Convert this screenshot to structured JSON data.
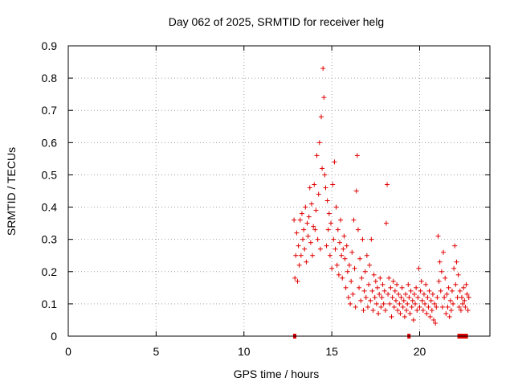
{
  "chart_data": {
    "type": "scatter",
    "title": "Day 062 of 2025, SRMTID for receiver helg",
    "xlabel": "GPS time / hours",
    "ylabel": "SRMTID / TECUs",
    "xlim": [
      0,
      24
    ],
    "ylim": [
      0,
      0.9
    ],
    "xticks": [
      "0",
      "5",
      "10",
      "15",
      "20"
    ],
    "yticks": [
      "0",
      "0.1",
      "0.2",
      "0.3",
      "0.4",
      "0.5",
      "0.6",
      "0.7",
      "0.8",
      "0.9"
    ],
    "grid": true,
    "marker": "+",
    "color": "#e00000",
    "series": [
      {
        "name": "SRMTID",
        "points": [
          [
            12.85,
            0.36
          ],
          [
            12.9,
            0.18
          ],
          [
            12.95,
            0.25
          ],
          [
            13.0,
            0.32
          ],
          [
            13.05,
            0.17
          ],
          [
            13.1,
            0.28
          ],
          [
            13.15,
            0.22
          ],
          [
            13.2,
            0.36
          ],
          [
            13.25,
            0.25
          ],
          [
            13.3,
            0.38
          ],
          [
            13.35,
            0.3
          ],
          [
            13.4,
            0.33
          ],
          [
            13.45,
            0.27
          ],
          [
            13.5,
            0.4
          ],
          [
            13.55,
            0.23
          ],
          [
            13.6,
            0.35
          ],
          [
            13.65,
            0.31
          ],
          [
            13.7,
            0.37
          ],
          [
            13.75,
            0.46
          ],
          [
            13.8,
            0.29
          ],
          [
            13.85,
            0.41
          ],
          [
            13.9,
            0.25
          ],
          [
            13.95,
            0.34
          ],
          [
            14.0,
            0.47
          ],
          [
            14.05,
            0.33
          ],
          [
            14.1,
            0.39
          ],
          [
            14.15,
            0.56
          ],
          [
            14.2,
            0.3
          ],
          [
            14.25,
            0.44
          ],
          [
            14.3,
            0.6
          ],
          [
            14.35,
            0.27
          ],
          [
            14.4,
            0.68
          ],
          [
            14.45,
            0.52
          ],
          [
            14.5,
            0.83
          ],
          [
            14.55,
            0.74
          ],
          [
            14.6,
            0.5
          ],
          [
            14.65,
            0.46
          ],
          [
            14.7,
            0.28
          ],
          [
            14.75,
            0.42
          ],
          [
            14.8,
            0.33
          ],
          [
            14.85,
            0.38
          ],
          [
            14.9,
            0.25
          ],
          [
            14.95,
            0.35
          ],
          [
            15.0,
            0.21
          ],
          [
            15.05,
            0.47
          ],
          [
            15.1,
            0.3
          ],
          [
            15.15,
            0.54
          ],
          [
            15.2,
            0.27
          ],
          [
            15.25,
            0.4
          ],
          [
            15.3,
            0.22
          ],
          [
            15.35,
            0.33
          ],
          [
            15.4,
            0.19
          ],
          [
            15.45,
            0.29
          ],
          [
            15.5,
            0.36
          ],
          [
            15.55,
            0.25
          ],
          [
            15.6,
            0.18
          ],
          [
            15.65,
            0.27
          ],
          [
            15.7,
            0.31
          ],
          [
            15.75,
            0.24
          ],
          [
            15.8,
            0.15
          ],
          [
            15.85,
            0.28
          ],
          [
            15.9,
            0.2
          ],
          [
            15.95,
            0.12
          ],
          [
            16.0,
            0.22
          ],
          [
            16.05,
            0.1
          ],
          [
            16.1,
            0.17
          ],
          [
            16.15,
            0.26
          ],
          [
            16.2,
            0.13
          ],
          [
            16.25,
            0.36
          ],
          [
            16.3,
            0.21
          ],
          [
            16.35,
            0.09
          ],
          [
            16.4,
            0.45
          ],
          [
            16.45,
            0.56
          ],
          [
            16.5,
            0.33
          ],
          [
            16.55,
            0.15
          ],
          [
            16.6,
            0.24
          ],
          [
            16.65,
            0.11
          ],
          [
            16.7,
            0.18
          ],
          [
            16.75,
            0.3
          ],
          [
            16.8,
            0.08
          ],
          [
            16.85,
            0.14
          ],
          [
            16.9,
            0.2
          ],
          [
            16.95,
            0.12
          ],
          [
            17.0,
            0.25
          ],
          [
            17.05,
            0.09
          ],
          [
            17.1,
            0.16
          ],
          [
            17.15,
            0.22
          ],
          [
            17.2,
            0.11
          ],
          [
            17.25,
            0.3
          ],
          [
            17.3,
            0.14
          ],
          [
            17.35,
            0.08
          ],
          [
            17.4,
            0.19
          ],
          [
            17.45,
            0.12
          ],
          [
            17.5,
            0.17
          ],
          [
            17.55,
            0.1
          ],
          [
            17.6,
            0.15
          ],
          [
            17.65,
            0.07
          ],
          [
            17.7,
            0.13
          ],
          [
            17.75,
            0.18
          ],
          [
            17.8,
            0.09
          ],
          [
            17.85,
            0.12
          ],
          [
            17.9,
            0.16
          ],
          [
            17.95,
            0.1
          ],
          [
            18.0,
            0.14
          ],
          [
            18.05,
            0.08
          ],
          [
            18.1,
            0.35
          ],
          [
            18.15,
            0.47
          ],
          [
            18.2,
            0.13
          ],
          [
            18.25,
            0.18
          ],
          [
            18.3,
            0.1
          ],
          [
            18.35,
            0.15
          ],
          [
            18.4,
            0.06
          ],
          [
            18.45,
            0.12
          ],
          [
            18.5,
            0.17
          ],
          [
            18.55,
            0.09
          ],
          [
            18.6,
            0.14
          ],
          [
            18.65,
            0.11
          ],
          [
            18.7,
            0.16
          ],
          [
            18.75,
            0.08
          ],
          [
            18.8,
            0.13
          ],
          [
            18.85,
            0.1
          ],
          [
            18.9,
            0.07
          ],
          [
            18.95,
            0.12
          ],
          [
            19.0,
            0.15
          ],
          [
            19.05,
            0.09
          ],
          [
            19.1,
            0.11
          ],
          [
            19.15,
            0.06
          ],
          [
            19.2,
            0.13
          ],
          [
            19.25,
            0.08
          ],
          [
            19.3,
            0.1
          ],
          [
            19.35,
            0.16
          ],
          [
            19.4,
            0.12
          ],
          [
            19.45,
            0.07
          ],
          [
            19.5,
            0.14
          ],
          [
            19.55,
            0.09
          ],
          [
            19.6,
            0.11
          ],
          [
            19.65,
            0.05
          ],
          [
            19.7,
            0.13
          ],
          [
            19.75,
            0.1
          ],
          [
            19.8,
            0.15
          ],
          [
            19.85,
            0.08
          ],
          [
            19.9,
            0.12
          ],
          [
            19.95,
            0.21
          ],
          [
            20.0,
            0.09
          ],
          [
            20.05,
            0.14
          ],
          [
            20.1,
            0.17
          ],
          [
            20.15,
            0.11
          ],
          [
            20.2,
            0.08
          ],
          [
            20.25,
            0.13
          ],
          [
            20.3,
            0.1
          ],
          [
            20.35,
            0.16
          ],
          [
            20.4,
            0.07
          ],
          [
            20.45,
            0.12
          ],
          [
            20.5,
            0.09
          ],
          [
            20.55,
            0.14
          ],
          [
            20.6,
            0.06
          ],
          [
            20.65,
            0.11
          ],
          [
            20.7,
            0.08
          ],
          [
            20.75,
            0.13
          ],
          [
            20.8,
            0.05
          ],
          [
            20.85,
            0.1
          ],
          [
            20.9,
            0.04
          ],
          [
            20.95,
            0.09
          ],
          [
            21.0,
            0.12
          ],
          [
            21.05,
            0.31
          ],
          [
            21.1,
            0.17
          ],
          [
            21.15,
            0.23
          ],
          [
            21.2,
            0.14
          ],
          [
            21.25,
            0.2
          ],
          [
            21.3,
            0.09
          ],
          [
            21.35,
            0.26
          ],
          [
            21.4,
            0.12
          ],
          [
            21.45,
            0.18
          ],
          [
            21.5,
            0.07
          ],
          [
            21.55,
            0.13
          ],
          [
            21.6,
            0.09
          ],
          [
            21.65,
            0.15
          ],
          [
            21.7,
            0.06
          ],
          [
            21.75,
            0.11
          ],
          [
            21.8,
            0.08
          ],
          [
            21.85,
            0.14
          ],
          [
            21.9,
            0.1
          ],
          [
            21.95,
            0.21
          ],
          [
            22.0,
            0.28
          ],
          [
            22.05,
            0.16
          ],
          [
            22.1,
            0.23
          ],
          [
            22.15,
            0.12
          ],
          [
            22.2,
            0.19
          ],
          [
            22.25,
            0.09
          ],
          [
            22.3,
            0.14
          ],
          [
            22.35,
            0.08
          ],
          [
            22.4,
            0.12
          ],
          [
            22.45,
            0.1
          ],
          [
            22.5,
            0.15
          ],
          [
            22.55,
            0.11
          ],
          [
            22.6,
            0.09
          ],
          [
            22.65,
            0.16
          ],
          [
            22.7,
            0.13
          ],
          [
            22.75,
            0.08
          ],
          [
            22.8,
            0.12
          ]
        ]
      }
    ],
    "gap_markers": [
      {
        "start": 12.8,
        "end": 12.95
      },
      {
        "start": 19.3,
        "end": 19.45
      },
      {
        "start": 22.15,
        "end": 22.75
      }
    ]
  }
}
